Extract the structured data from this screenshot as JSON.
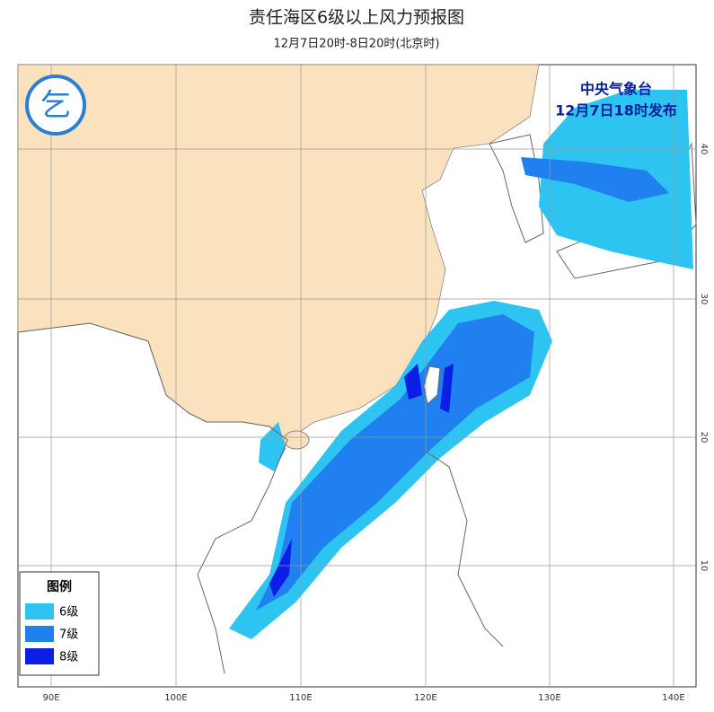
{
  "header": {
    "title": "责任海区6级以上风力预报图",
    "subtitle": "12月7日20时-8日20时(北京时)"
  },
  "issuer": {
    "name": "中央气象台",
    "time": "12月7日18时发布"
  },
  "legend": {
    "title": "图例",
    "items": [
      {
        "label": "6级",
        "color": "#2ec4f2"
      },
      {
        "label": "7级",
        "color": "#2080f0"
      },
      {
        "label": "8级",
        "color": "#0a1ee6"
      }
    ]
  },
  "axes": {
    "longitudes": [
      "90E",
      "100E",
      "110E",
      "120E",
      "130E",
      "140E"
    ],
    "latitudes": [
      "40",
      "30",
      "20",
      "10"
    ]
  }
}
